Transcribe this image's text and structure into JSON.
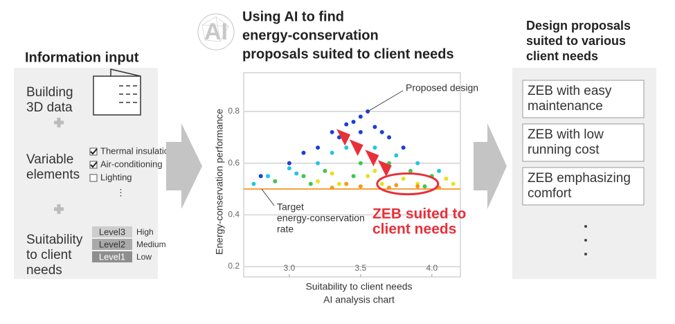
{
  "logo": "AI",
  "left": {
    "title": "Information input",
    "building_label": [
      "Building",
      "3D data"
    ],
    "variable_label": [
      "Variable",
      "elements"
    ],
    "checkboxes": [
      {
        "label": "Thermal insulation",
        "checked": true
      },
      {
        "label": "Air-conditioning",
        "checked": true
      },
      {
        "label": "Lighting",
        "checked": false
      }
    ],
    "suitability_label": [
      "Suitability",
      "to client",
      "needs"
    ],
    "levels": [
      {
        "label": "Level3",
        "desc": "High"
      },
      {
        "label": "Level2",
        "desc": "Medium"
      },
      {
        "label": "Level1",
        "desc": "Low"
      }
    ]
  },
  "center": {
    "heading": [
      "Using AI to find",
      "energy-conservation",
      "proposals suited to client needs"
    ]
  },
  "chart_data": {
    "type": "scatter",
    "xlabel": "Suitability to client needs",
    "ylabel": "Energy-conservation performance",
    "caption": "AI analysis chart",
    "xlim": [
      2.68,
      4.2
    ],
    "ylim": [
      0.16,
      0.95
    ],
    "xticks": [
      {
        "value": 3,
        "label": "3.0"
      },
      {
        "value": 3.5,
        "label": "3.5"
      },
      {
        "value": 4,
        "label": "4.0"
      }
    ],
    "yticks": [
      0.2,
      0.4,
      0.6,
      0.8
    ],
    "grid": true,
    "target_line": 0.5,
    "annotations": {
      "proposed": "Proposed design",
      "target": [
        "Target",
        "energy-conservation",
        "rate"
      ],
      "zeb": [
        "ZEB suited to",
        "client needs"
      ]
    },
    "series": [
      {
        "color": "#1c3fd6",
        "x": [
          3.4,
          3.5,
          3.55,
          3.3,
          3.6,
          3.2,
          3.7,
          3.45,
          3.1,
          3.65,
          2.8,
          3.0,
          3.8,
          3.35,
          3.5
        ],
        "y": [
          0.75,
          0.78,
          0.8,
          0.72,
          0.74,
          0.66,
          0.7,
          0.76,
          0.64,
          0.72,
          0.55,
          0.6,
          0.66,
          0.7,
          0.72
        ]
      },
      {
        "color": "#22c6e0",
        "x": [
          2.85,
          3.0,
          3.2,
          3.3,
          3.6,
          3.75,
          3.9,
          2.75,
          3.4,
          3.05,
          4.05
        ],
        "y": [
          0.55,
          0.58,
          0.6,
          0.64,
          0.66,
          0.63,
          0.6,
          0.52,
          0.66,
          0.56,
          0.57
        ]
      },
      {
        "color": "#3cc850",
        "x": [
          2.9,
          3.1,
          3.25,
          3.5,
          3.7,
          3.85,
          4.0,
          3.15,
          3.45,
          3.95
        ],
        "y": [
          0.53,
          0.55,
          0.57,
          0.6,
          0.6,
          0.57,
          0.55,
          0.52,
          0.55,
          0.51
        ]
      },
      {
        "color": "#e8e020",
        "x": [
          3.2,
          3.35,
          3.55,
          3.65,
          3.8,
          3.9,
          4.1,
          3.3,
          3.6,
          4.15
        ],
        "y": [
          0.53,
          0.52,
          0.55,
          0.52,
          0.54,
          0.52,
          0.54,
          0.56,
          0.57,
          0.52
        ]
      },
      {
        "color": "#f29a1e",
        "x": [
          3.3,
          3.5,
          3.7,
          3.9,
          4.05,
          3.4,
          3.75
        ],
        "y": [
          0.505,
          0.51,
          0.505,
          0.51,
          0.505,
          0.52,
          0.515
        ]
      }
    ]
  },
  "right": {
    "title": [
      "Design proposals",
      "suited to various",
      "client needs"
    ],
    "proposals": [
      [
        "ZEB with easy",
        "maintenance"
      ],
      [
        "ZEB with low",
        "running cost"
      ],
      [
        "ZEB emphasizing",
        "comfort"
      ]
    ]
  }
}
